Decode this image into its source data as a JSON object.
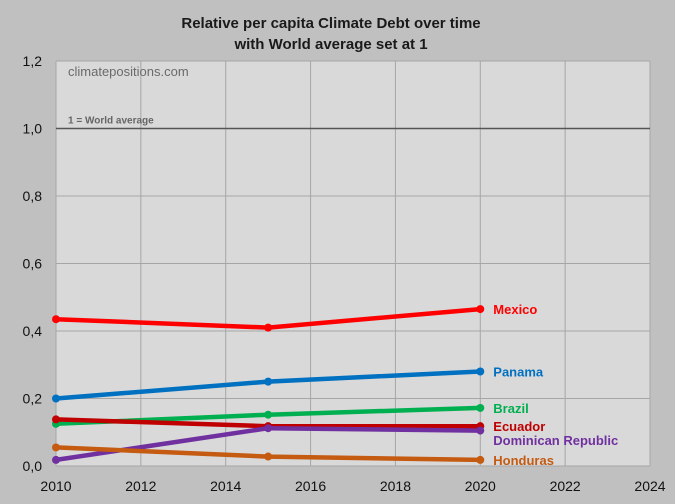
{
  "chart_data": {
    "type": "line",
    "title": "Relative per capita Climate Debt over time",
    "subtitle": "with World average set at 1",
    "watermark": "climatepositions.com",
    "reference_line": {
      "y": 1.0,
      "label": "1 = World average"
    },
    "xlim": [
      2010,
      2024
    ],
    "ylim": [
      0,
      1.2
    ],
    "x_ticks": [
      "2010",
      "2012",
      "2014",
      "2016",
      "2018",
      "2020",
      "2022",
      "2024"
    ],
    "y_ticks": [
      "0,0",
      "0,2",
      "0,4",
      "0,6",
      "0,8",
      "1,0",
      "1,2"
    ],
    "grid": true,
    "x": [
      2010,
      2015,
      2020
    ],
    "series": [
      {
        "name": "Mexico",
        "values": [
          0.435,
          0.41,
          0.465
        ],
        "color": "#ff0000"
      },
      {
        "name": "Panama",
        "values": [
          0.2,
          0.25,
          0.28
        ],
        "color": "#0070c0"
      },
      {
        "name": "Brazil",
        "values": [
          0.125,
          0.152,
          0.172
        ],
        "color": "#00b050"
      },
      {
        "name": "Ecuador",
        "values": [
          0.138,
          0.118,
          0.118
        ],
        "color": "#c00000"
      },
      {
        "name": "Dominican Republic",
        "values": [
          0.018,
          0.112,
          0.105
        ],
        "color": "#7030a0"
      },
      {
        "name": "Honduras",
        "values": [
          0.055,
          0.028,
          0.018
        ],
        "color": "#c55a11"
      }
    ]
  }
}
